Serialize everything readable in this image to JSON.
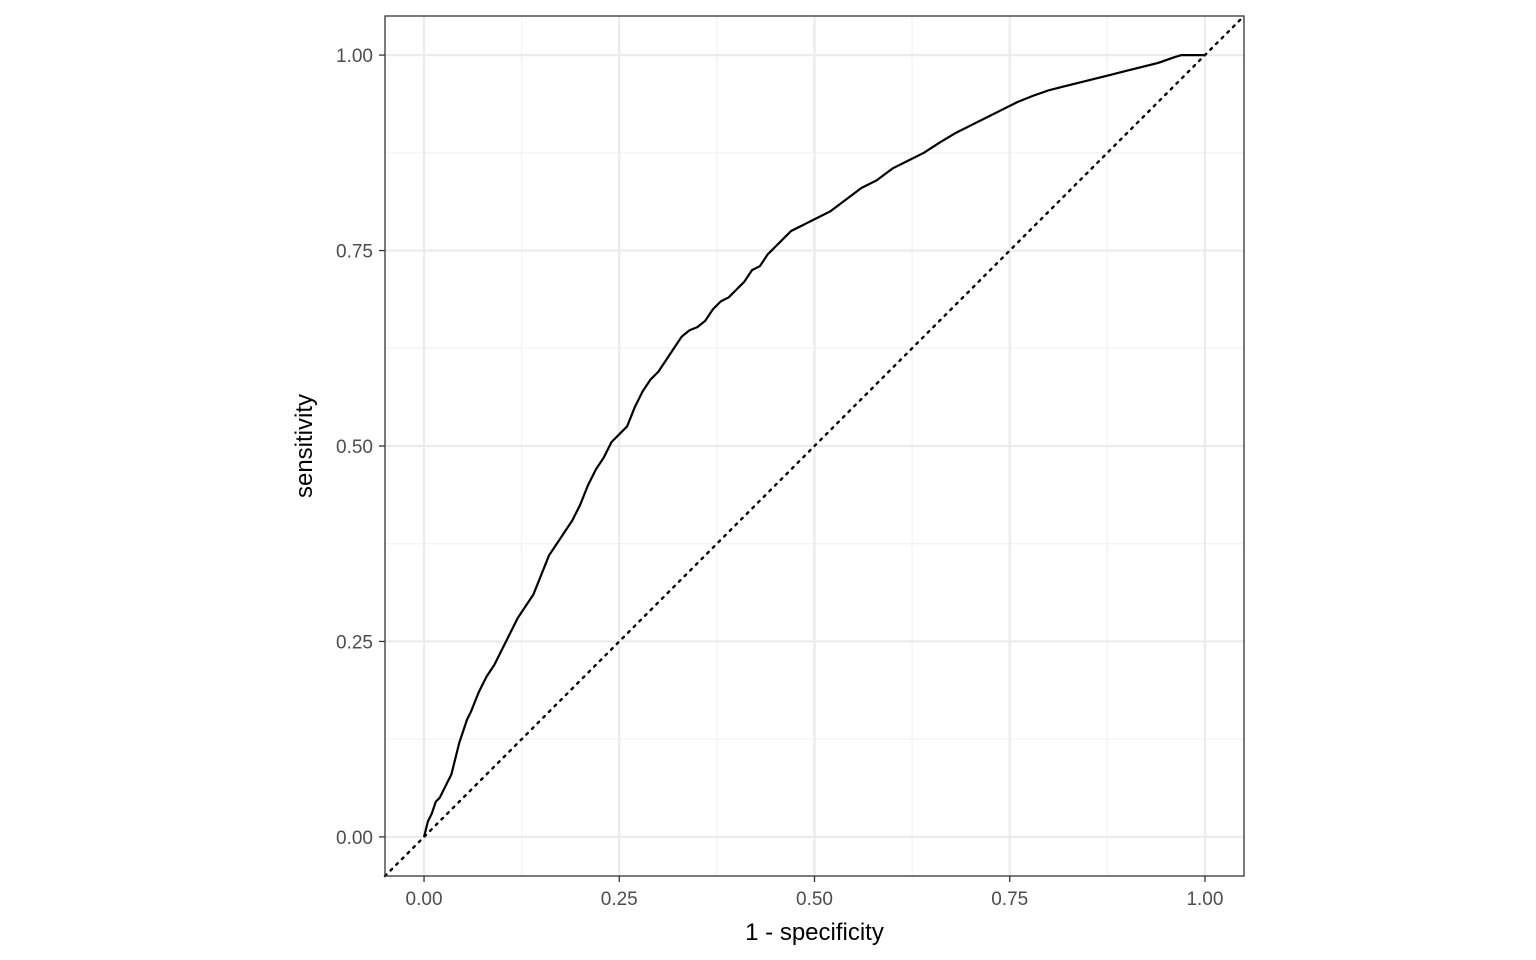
{
  "chart_data": {
    "type": "line",
    "title": "",
    "xlabel": "1 - specificity",
    "ylabel": "sensitivity",
    "xlim": [
      -0.05,
      1.05
    ],
    "ylim": [
      -0.05,
      1.05
    ],
    "x_ticks": [
      0,
      0.25,
      0.5,
      0.75,
      1
    ],
    "y_ticks": [
      0,
      0.25,
      0.5,
      0.75,
      1
    ],
    "x_tick_labels": [
      "0.00",
      "0.25",
      "0.50",
      "0.75",
      "1.00"
    ],
    "y_tick_labels": [
      "0.00",
      "0.25",
      "0.50",
      "0.75",
      "1.00"
    ],
    "grid": true,
    "legend": "none",
    "colors": {
      "curve": "#000000",
      "reference_line": "#000000",
      "grid_major": "#ebebeb",
      "grid_minor": "#f2f2f2",
      "panel_border": "#333333",
      "tick_text": "#4d4d4d"
    },
    "series": [
      {
        "style": "solid",
        "points": [
          [
            0.0,
            0.0
          ],
          [
            0.005,
            0.02
          ],
          [
            0.01,
            0.03
          ],
          [
            0.015,
            0.045
          ],
          [
            0.02,
            0.05
          ],
          [
            0.025,
            0.06
          ],
          [
            0.03,
            0.07
          ],
          [
            0.035,
            0.08
          ],
          [
            0.04,
            0.1
          ],
          [
            0.045,
            0.12
          ],
          [
            0.05,
            0.135
          ],
          [
            0.055,
            0.15
          ],
          [
            0.06,
            0.16
          ],
          [
            0.07,
            0.185
          ],
          [
            0.08,
            0.205
          ],
          [
            0.09,
            0.22
          ],
          [
            0.1,
            0.24
          ],
          [
            0.11,
            0.26
          ],
          [
            0.12,
            0.28
          ],
          [
            0.13,
            0.295
          ],
          [
            0.14,
            0.31
          ],
          [
            0.15,
            0.335
          ],
          [
            0.16,
            0.36
          ],
          [
            0.17,
            0.375
          ],
          [
            0.18,
            0.39
          ],
          [
            0.19,
            0.405
          ],
          [
            0.2,
            0.425
          ],
          [
            0.21,
            0.45
          ],
          [
            0.22,
            0.47
          ],
          [
            0.23,
            0.485
          ],
          [
            0.24,
            0.505
          ],
          [
            0.25,
            0.515
          ],
          [
            0.26,
            0.525
          ],
          [
            0.27,
            0.55
          ],
          [
            0.28,
            0.57
          ],
          [
            0.29,
            0.585
          ],
          [
            0.3,
            0.595
          ],
          [
            0.31,
            0.61
          ],
          [
            0.32,
            0.625
          ],
          [
            0.33,
            0.64
          ],
          [
            0.34,
            0.648
          ],
          [
            0.35,
            0.652
          ],
          [
            0.36,
            0.66
          ],
          [
            0.37,
            0.675
          ],
          [
            0.38,
            0.685
          ],
          [
            0.39,
            0.69
          ],
          [
            0.4,
            0.7
          ],
          [
            0.41,
            0.71
          ],
          [
            0.42,
            0.725
          ],
          [
            0.43,
            0.73
          ],
          [
            0.44,
            0.745
          ],
          [
            0.45,
            0.755
          ],
          [
            0.46,
            0.765
          ],
          [
            0.47,
            0.775
          ],
          [
            0.48,
            0.78
          ],
          [
            0.49,
            0.785
          ],
          [
            0.5,
            0.79
          ],
          [
            0.52,
            0.8
          ],
          [
            0.54,
            0.815
          ],
          [
            0.56,
            0.83
          ],
          [
            0.58,
            0.84
          ],
          [
            0.6,
            0.855
          ],
          [
            0.62,
            0.865
          ],
          [
            0.64,
            0.875
          ],
          [
            0.66,
            0.888
          ],
          [
            0.68,
            0.9
          ],
          [
            0.7,
            0.91
          ],
          [
            0.72,
            0.92
          ],
          [
            0.74,
            0.93
          ],
          [
            0.76,
            0.94
          ],
          [
            0.78,
            0.948
          ],
          [
            0.8,
            0.955
          ],
          [
            0.82,
            0.96
          ],
          [
            0.84,
            0.965
          ],
          [
            0.86,
            0.97
          ],
          [
            0.88,
            0.975
          ],
          [
            0.9,
            0.98
          ],
          [
            0.92,
            0.985
          ],
          [
            0.94,
            0.99
          ],
          [
            0.96,
            0.997
          ],
          [
            0.97,
            1.0
          ],
          [
            1.0,
            1.0
          ]
        ]
      },
      {
        "style": "dotted",
        "points": [
          [
            -0.05,
            -0.05
          ],
          [
            1.05,
            1.05
          ]
        ]
      }
    ]
  }
}
